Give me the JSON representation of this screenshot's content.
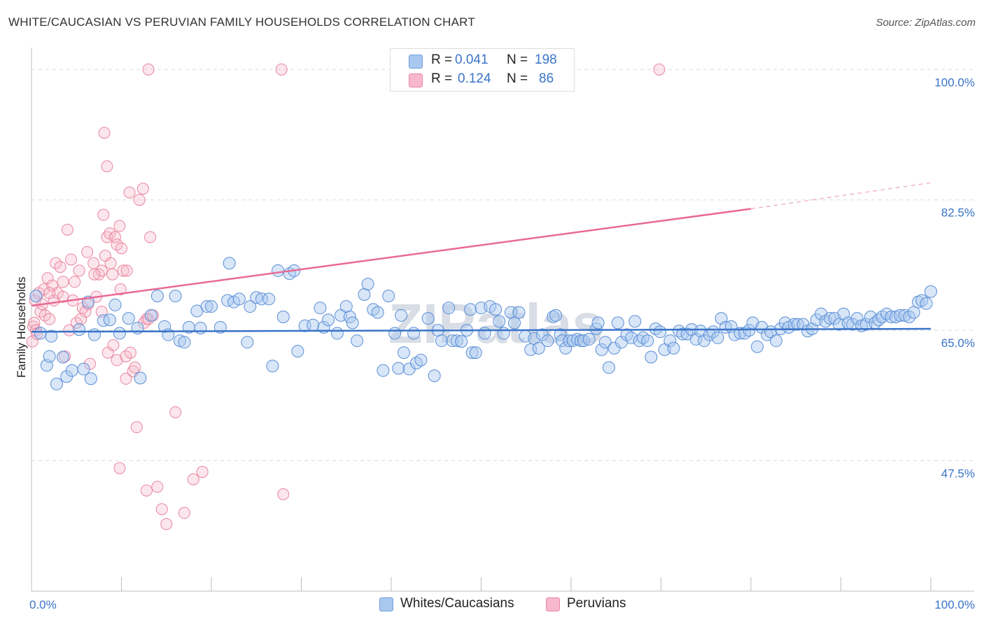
{
  "header": {
    "title": "WHITE/CAUCASIAN VS PERUVIAN FAMILY HOUSEHOLDS CORRELATION CHART",
    "source": "Source: ZipAtlas.com"
  },
  "legend_top": {
    "rows": [
      {
        "r_label": "R =",
        "r_value": "0.041",
        "n_label": "N =",
        "n_value": "198",
        "color": "#a9c8f0"
      },
      {
        "r_label": "R =",
        "r_value": "0.124",
        "n_label": "N =",
        "n_value": "86",
        "color": "#f7b8cc"
      }
    ]
  },
  "legend_bottom": {
    "items": [
      {
        "label": "Whites/Caucasians",
        "color": "#a9c8f0"
      },
      {
        "label": "Peruvians",
        "color": "#f7b8cc"
      }
    ]
  },
  "watermark": "ZIPatlas",
  "chart_data": {
    "type": "scatter",
    "title": "WHITE/CAUCASIAN VS PERUVIAN FAMILY HOUSEHOLDS CORRELATION CHART",
    "xlabel": "",
    "ylabel": "Family Households",
    "xlim": [
      0,
      100
    ],
    "ylim": [
      30,
      102
    ],
    "y_ticks": [
      47.5,
      65.0,
      82.5,
      100.0
    ],
    "y_tick_labels": [
      "47.5%",
      "65.0%",
      "82.5%",
      "100.0%"
    ],
    "x_tick_labels": [
      "0.0%",
      "100.0%"
    ],
    "grid": true,
    "series": [
      {
        "name": "Whites/Caucasians",
        "color": "#3a74c8",
        "fill": "#a9c8f0",
        "R": 0.041,
        "N": 198,
        "trend": {
          "x": [
            0,
            100
          ],
          "y": [
            64.8,
            65.2
          ]
        },
        "points": [
          [
            0.5,
            69.6
          ],
          [
            1.0,
            64.6
          ],
          [
            1.7,
            60.3
          ],
          [
            2.0,
            61.5
          ],
          [
            2.2,
            64.2
          ],
          [
            2.8,
            57.8
          ],
          [
            3.5,
            61.4
          ],
          [
            3.9,
            58.8
          ],
          [
            4.5,
            59.6
          ],
          [
            5.3,
            65.1
          ],
          [
            5.8,
            59.8
          ],
          [
            6.3,
            68.8
          ],
          [
            6.6,
            58.5
          ],
          [
            7.0,
            64.4
          ],
          [
            8.0,
            66.3
          ],
          [
            8.7,
            66.4
          ],
          [
            9.3,
            68.4
          ],
          [
            9.8,
            64.6
          ],
          [
            10.8,
            66.6
          ],
          [
            11.8,
            65.3
          ],
          [
            12.1,
            58.6
          ],
          [
            13.3,
            67.0
          ],
          [
            14.0,
            69.6
          ],
          [
            14.8,
            65.5
          ],
          [
            15.2,
            64.4
          ],
          [
            16.0,
            69.6
          ],
          [
            16.5,
            63.6
          ],
          [
            17.0,
            63.4
          ],
          [
            17.5,
            65.4
          ],
          [
            18.4,
            67.6
          ],
          [
            18.8,
            65.3
          ],
          [
            19.5,
            68.2
          ],
          [
            20.0,
            68.2
          ],
          [
            21.0,
            65.4
          ],
          [
            21.8,
            69.0
          ],
          [
            22.0,
            74.0
          ],
          [
            22.5,
            68.8
          ],
          [
            23.1,
            69.2
          ],
          [
            24.0,
            63.4
          ],
          [
            24.3,
            68.2
          ],
          [
            25.0,
            69.4
          ],
          [
            25.6,
            69.2
          ],
          [
            26.4,
            69.2
          ],
          [
            26.8,
            60.2
          ],
          [
            27.4,
            73.0
          ],
          [
            28.0,
            66.8
          ],
          [
            28.7,
            72.6
          ],
          [
            29.2,
            73.0
          ],
          [
            29.6,
            62.2
          ],
          [
            30.4,
            65.6
          ],
          [
            31.3,
            65.7
          ],
          [
            32.1,
            68.0
          ],
          [
            32.5,
            65.4
          ],
          [
            33.0,
            66.4
          ],
          [
            34.0,
            64.6
          ],
          [
            34.4,
            67.0
          ],
          [
            35.0,
            68.2
          ],
          [
            35.4,
            66.8
          ],
          [
            35.7,
            66.0
          ],
          [
            36.2,
            63.6
          ],
          [
            37.0,
            69.8
          ],
          [
            37.4,
            71.2
          ],
          [
            38.0,
            67.8
          ],
          [
            38.5,
            67.4
          ],
          [
            39.1,
            59.6
          ],
          [
            39.7,
            69.6
          ],
          [
            40.4,
            64.6
          ],
          [
            40.8,
            59.9
          ],
          [
            41.1,
            67.0
          ],
          [
            41.4,
            62.0
          ],
          [
            42.0,
            59.8
          ],
          [
            42.5,
            64.6
          ],
          [
            42.8,
            60.6
          ],
          [
            43.3,
            61.0
          ],
          [
            44.1,
            66.6
          ],
          [
            44.8,
            58.9
          ],
          [
            45.2,
            65.0
          ],
          [
            45.6,
            63.6
          ],
          [
            46.4,
            68.0
          ],
          [
            46.8,
            63.6
          ],
          [
            47.3,
            63.6
          ],
          [
            47.8,
            63.5
          ],
          [
            48.4,
            65.0
          ],
          [
            48.8,
            67.8
          ],
          [
            49.0,
            62.0
          ],
          [
            49.4,
            62.0
          ],
          [
            50.0,
            68.0
          ],
          [
            50.4,
            64.6
          ],
          [
            51.0,
            68.2
          ],
          [
            51.6,
            67.8
          ],
          [
            52.0,
            66.2
          ],
          [
            52.5,
            64.6
          ],
          [
            53.3,
            67.4
          ],
          [
            53.7,
            66.0
          ],
          [
            54.2,
            67.4
          ],
          [
            54.9,
            64.2
          ],
          [
            55.5,
            62.4
          ],
          [
            55.9,
            63.9
          ],
          [
            56.4,
            62.6
          ],
          [
            56.8,
            64.4
          ],
          [
            57.4,
            63.6
          ],
          [
            58.0,
            66.8
          ],
          [
            58.3,
            67.0
          ],
          [
            58.8,
            64.4
          ],
          [
            59.0,
            63.6
          ],
          [
            59.4,
            62.6
          ],
          [
            59.8,
            63.6
          ],
          [
            60.2,
            63.6
          ],
          [
            60.7,
            63.8
          ],
          [
            61.1,
            63.6
          ],
          [
            61.4,
            63.6
          ],
          [
            62.0,
            63.8
          ],
          [
            62.8,
            65.2
          ],
          [
            63.0,
            66.0
          ],
          [
            63.4,
            62.4
          ],
          [
            63.8,
            63.4
          ],
          [
            64.2,
            60.0
          ],
          [
            64.8,
            62.6
          ],
          [
            65.2,
            66.0
          ],
          [
            65.6,
            63.4
          ],
          [
            66.2,
            64.4
          ],
          [
            66.7,
            64.0
          ],
          [
            67.1,
            66.2
          ],
          [
            67.6,
            63.6
          ],
          [
            68.0,
            64.0
          ],
          [
            68.5,
            63.6
          ],
          [
            68.9,
            61.4
          ],
          [
            69.4,
            65.2
          ],
          [
            69.9,
            64.8
          ],
          [
            70.4,
            62.4
          ],
          [
            71.0,
            63.6
          ],
          [
            71.4,
            62.6
          ],
          [
            72.0,
            64.9
          ],
          [
            72.4,
            64.5
          ],
          [
            72.9,
            64.5
          ],
          [
            73.4,
            65.1
          ],
          [
            73.9,
            63.8
          ],
          [
            74.4,
            64.9
          ],
          [
            74.8,
            63.6
          ],
          [
            75.4,
            64.4
          ],
          [
            75.8,
            64.8
          ],
          [
            76.3,
            64.0
          ],
          [
            76.7,
            66.6
          ],
          [
            77.2,
            65.4
          ],
          [
            77.8,
            65.5
          ],
          [
            78.2,
            64.4
          ],
          [
            78.8,
            64.6
          ],
          [
            79.3,
            64.6
          ],
          [
            79.8,
            65.0
          ],
          [
            80.2,
            66.0
          ],
          [
            80.7,
            62.8
          ],
          [
            81.2,
            65.4
          ],
          [
            81.8,
            64.4
          ],
          [
            82.2,
            64.8
          ],
          [
            82.8,
            63.6
          ],
          [
            83.3,
            65.2
          ],
          [
            83.8,
            66.0
          ],
          [
            84.2,
            65.4
          ],
          [
            84.8,
            65.8
          ],
          [
            85.2,
            65.8
          ],
          [
            85.8,
            65.8
          ],
          [
            86.3,
            64.9
          ],
          [
            86.8,
            65.2
          ],
          [
            87.3,
            66.4
          ],
          [
            87.8,
            67.2
          ],
          [
            88.3,
            66.2
          ],
          [
            88.8,
            66.6
          ],
          [
            89.3,
            66.6
          ],
          [
            89.8,
            65.8
          ],
          [
            90.3,
            67.2
          ],
          [
            90.8,
            66.0
          ],
          [
            91.3,
            65.8
          ],
          [
            91.8,
            66.6
          ],
          [
            92.3,
            65.6
          ],
          [
            92.8,
            65.8
          ],
          [
            93.3,
            66.8
          ],
          [
            93.8,
            66.0
          ],
          [
            94.2,
            66.4
          ],
          [
            94.6,
            66.8
          ],
          [
            95.1,
            67.2
          ],
          [
            95.6,
            66.8
          ],
          [
            96.1,
            66.8
          ],
          [
            96.6,
            67.0
          ],
          [
            97.1,
            67.0
          ],
          [
            97.6,
            66.8
          ],
          [
            98.1,
            67.4
          ],
          [
            98.6,
            68.8
          ],
          [
            99.0,
            69.0
          ],
          [
            99.5,
            68.6
          ],
          [
            100.0,
            70.2
          ]
        ]
      },
      {
        "name": "Peruvians",
        "color": "#e86a95",
        "fill": "#f7b8cc",
        "R": 0.124,
        "N": 86,
        "trend": {
          "x": [
            0,
            80
          ],
          "y": [
            68.3,
            81.3
          ]
        },
        "trend_dashed": {
          "x": [
            80,
            100
          ],
          "y": [
            81.3,
            84.8
          ]
        },
        "points": [
          [
            0.1,
            63.5
          ],
          [
            0.2,
            65.5
          ],
          [
            0.3,
            66.0
          ],
          [
            0.4,
            69.0
          ],
          [
            0.5,
            65.0
          ],
          [
            0.6,
            64.5
          ],
          [
            0.8,
            70.0
          ],
          [
            1.0,
            67.5
          ],
          [
            1.2,
            68.5
          ],
          [
            1.4,
            70.5
          ],
          [
            1.5,
            67.0
          ],
          [
            1.8,
            72.0
          ],
          [
            2.0,
            66.5
          ],
          [
            2.3,
            71.0
          ],
          [
            2.5,
            69.0
          ],
          [
            2.7,
            74.0
          ],
          [
            2.9,
            70.0
          ],
          [
            3.2,
            73.5
          ],
          [
            3.5,
            69.5
          ],
          [
            3.7,
            61.5
          ],
          [
            4.0,
            78.5
          ],
          [
            4.2,
            65.0
          ],
          [
            4.4,
            74.5
          ],
          [
            4.8,
            71.5
          ],
          [
            5.0,
            66.0
          ],
          [
            5.3,
            73.0
          ],
          [
            5.7,
            68.0
          ],
          [
            6.0,
            67.5
          ],
          [
            6.2,
            75.5
          ],
          [
            6.5,
            60.5
          ],
          [
            6.9,
            74.0
          ],
          [
            7.2,
            69.5
          ],
          [
            7.5,
            72.5
          ],
          [
            7.8,
            73.0
          ],
          [
            8.0,
            80.5
          ],
          [
            8.2,
            75.0
          ],
          [
            8.4,
            77.5
          ],
          [
            8.7,
            78.0
          ],
          [
            9.0,
            72.5
          ],
          [
            9.3,
            77.5
          ],
          [
            9.5,
            76.5
          ],
          [
            9.8,
            79.0
          ],
          [
            10.2,
            73.0
          ],
          [
            10.5,
            58.5
          ],
          [
            10.9,
            83.5
          ],
          [
            11.3,
            59.5
          ],
          [
            11.7,
            52.0
          ],
          [
            12.0,
            82.5
          ],
          [
            12.4,
            84.0
          ],
          [
            12.8,
            66.5
          ],
          [
            13.2,
            77.5
          ],
          [
            8.5,
            62.0
          ],
          [
            8.1,
            91.5
          ],
          [
            8.4,
            87.0
          ],
          [
            9.1,
            63.0
          ],
          [
            9.5,
            61.0
          ],
          [
            10.0,
            76.0
          ],
          [
            10.5,
            61.5
          ],
          [
            11.0,
            62.0
          ],
          [
            11.5,
            60.0
          ],
          [
            12.5,
            66.0
          ],
          [
            13.0,
            66.5
          ],
          [
            13.5,
            67.0
          ],
          [
            14.0,
            44.0
          ],
          [
            14.5,
            41.0
          ],
          [
            15.0,
            39.0
          ],
          [
            16.0,
            54.0
          ],
          [
            17.0,
            40.5
          ],
          [
            18.0,
            45.0
          ],
          [
            19.0,
            46.0
          ],
          [
            28.0,
            43.0
          ],
          [
            12.8,
            43.5
          ],
          [
            9.8,
            46.5
          ],
          [
            13.0,
            100.0
          ],
          [
            27.8,
            100.0
          ],
          [
            69.8,
            100.0
          ],
          [
            2.0,
            70.0
          ],
          [
            3.5,
            71.5
          ],
          [
            4.6,
            69.0
          ],
          [
            5.5,
            66.5
          ],
          [
            6.3,
            68.5
          ],
          [
            7.0,
            72.5
          ],
          [
            7.8,
            67.5
          ],
          [
            8.8,
            74.0
          ],
          [
            9.9,
            70.5
          ],
          [
            10.6,
            73.0
          ]
        ]
      }
    ]
  }
}
